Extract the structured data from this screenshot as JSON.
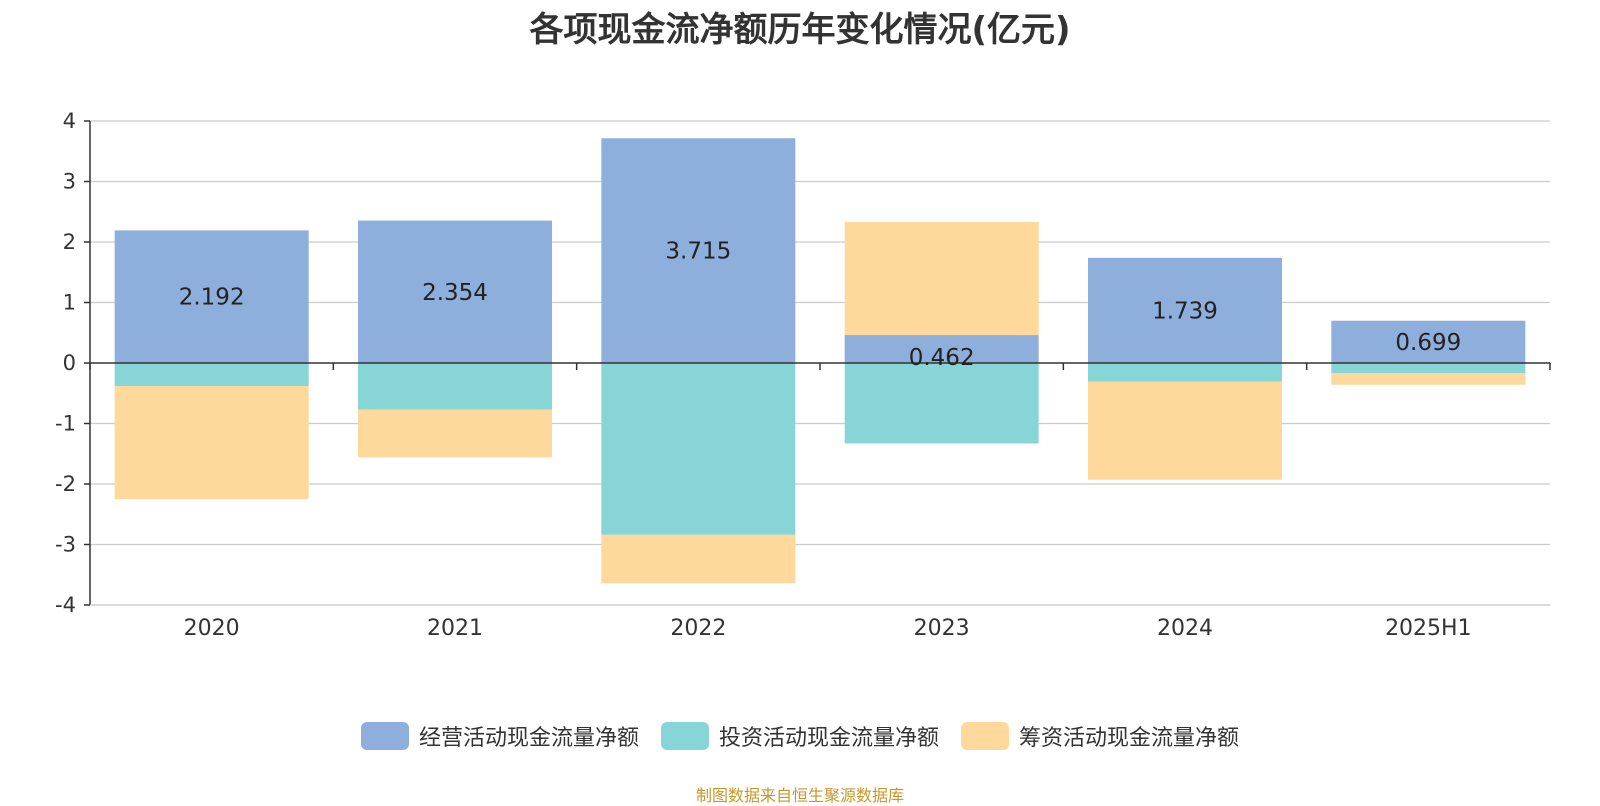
{
  "chart_data": {
    "type": "bar",
    "stacked": true,
    "title": "各项现金流净额历年变化情况(亿元)",
    "categories": [
      "2020",
      "2021",
      "2022",
      "2023",
      "2024",
      "2025H1"
    ],
    "ylim": [
      -4,
      4
    ],
    "yticks": [
      "4",
      "3",
      "2",
      "1",
      "0",
      "-1",
      "-2",
      "-3",
      "-4"
    ],
    "grid": true,
    "legend_position": "bottom",
    "series": [
      {
        "name": "经营活动现金流量净额",
        "color": "#8eaedb",
        "values": [
          2.192,
          2.354,
          3.715,
          0.462,
          1.739,
          0.699
        ],
        "labels": [
          "2.192",
          "2.354",
          "3.715",
          "0.462",
          "1.739",
          "0.699"
        ]
      },
      {
        "name": "投资活动现金流量净额",
        "color": "#88d5d8",
        "values": [
          -0.38,
          -0.77,
          -2.84,
          -1.33,
          -0.31,
          -0.17
        ]
      },
      {
        "name": "筹资活动现金流量净额",
        "color": "#fed99b",
        "values": [
          -1.87,
          -0.79,
          -0.8,
          1.87,
          -1.62,
          -0.19
        ]
      }
    ]
  },
  "source_note": "制图数据来自恒生聚源数据库"
}
